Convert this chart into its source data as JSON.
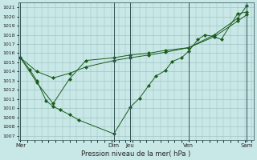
{
  "xlabel": "Pression niveau de la mer( hPa )",
  "background_color": "#c8e8e8",
  "grid_color": "#99bbbb",
  "line_color": "#1a5c1a",
  "ylim": [
    1006.5,
    1021.5
  ],
  "yticks": [
    1007,
    1008,
    1009,
    1010,
    1011,
    1012,
    1013,
    1014,
    1015,
    1016,
    1017,
    1018,
    1019,
    1020,
    1021
  ],
  "day_labels": [
    "Mer",
    "Dim",
    "Jeu",
    "Ven",
    "Sam"
  ],
  "day_positions": [
    0.0,
    0.4,
    0.47,
    0.72,
    0.97
  ],
  "vline_positions": [
    0.0,
    0.4,
    0.47,
    0.72,
    0.97
  ],
  "series1_x": [
    0.0,
    0.04,
    0.07,
    0.11,
    0.14,
    0.17,
    0.21,
    0.25,
    0.4,
    0.47,
    0.51,
    0.55,
    0.58,
    0.62,
    0.65,
    0.69,
    0.72,
    0.76,
    0.79,
    0.83,
    0.86,
    0.93,
    0.97
  ],
  "series1_y": [
    1015.5,
    1014.2,
    1013.0,
    1010.8,
    1010.2,
    1009.8,
    1009.3,
    1008.7,
    1007.2,
    1010.1,
    1011.1,
    1012.5,
    1013.5,
    1014.1,
    1015.1,
    1015.5,
    1016.2,
    1017.5,
    1018.0,
    1017.8,
    1017.5,
    1020.3,
    1020.5
  ],
  "series2_x": [
    0.0,
    0.07,
    0.14,
    0.21,
    0.28,
    0.4,
    0.47,
    0.55,
    0.62,
    0.72,
    0.83,
    0.93,
    0.97
  ],
  "series2_y": [
    1015.5,
    1014.0,
    1013.3,
    1013.8,
    1014.5,
    1015.2,
    1015.5,
    1015.8,
    1016.1,
    1016.6,
    1017.8,
    1019.5,
    1020.2
  ],
  "series3_x": [
    0.0,
    0.07,
    0.14,
    0.21,
    0.28,
    0.4,
    0.47,
    0.55,
    0.62,
    0.72,
    0.83,
    0.93,
    0.97
  ],
  "series3_y": [
    1015.5,
    1012.8,
    1010.5,
    1013.2,
    1015.2,
    1015.5,
    1015.8,
    1016.0,
    1016.3,
    1016.6,
    1018.0,
    1019.8,
    1021.2
  ]
}
